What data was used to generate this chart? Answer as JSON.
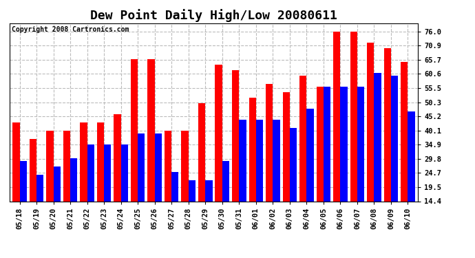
{
  "title": "Dew Point Daily High/Low 20080611",
  "copyright": "Copyright 2008 Cartronics.com",
  "dates": [
    "05/18",
    "05/19",
    "05/20",
    "05/21",
    "05/22",
    "05/23",
    "05/24",
    "05/25",
    "05/26",
    "05/27",
    "05/28",
    "05/29",
    "05/30",
    "05/31",
    "06/01",
    "06/02",
    "06/03",
    "06/04",
    "06/05",
    "06/06",
    "06/07",
    "06/08",
    "06/09",
    "06/10"
  ],
  "highs": [
    43,
    37,
    40,
    40,
    43,
    43,
    46,
    66,
    66,
    40,
    40,
    50,
    64,
    62,
    52,
    57,
    54,
    60,
    56,
    76,
    76,
    72,
    70,
    65
  ],
  "lows": [
    29,
    24,
    27,
    30,
    35,
    35,
    35,
    39,
    39,
    25,
    22,
    22,
    29,
    44,
    44,
    44,
    41,
    48,
    56,
    56,
    56,
    61,
    60,
    47
  ],
  "bar_width": 0.42,
  "high_color": "#FF0000",
  "low_color": "#0000FF",
  "bg_color": "#FFFFFF",
  "plot_bg_color": "#FFFFFF",
  "grid_color": "#BBBBBB",
  "yticks": [
    14.4,
    19.5,
    24.7,
    29.8,
    34.9,
    40.1,
    45.2,
    50.3,
    55.5,
    60.6,
    65.7,
    70.9,
    76.0
  ],
  "ymin": 14.4,
  "ymax": 79.0,
  "title_fontsize": 13,
  "tick_fontsize": 7.5,
  "copyright_fontsize": 7
}
